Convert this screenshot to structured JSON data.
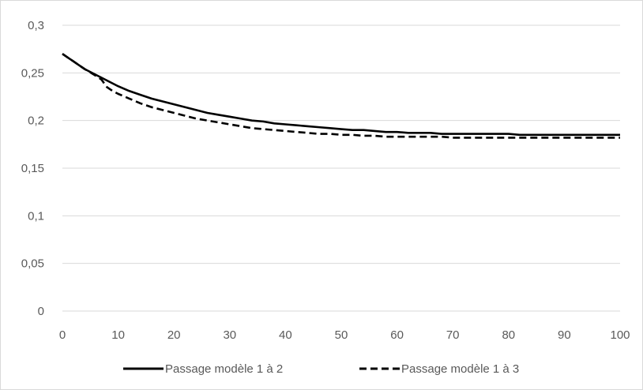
{
  "chart_data": {
    "type": "line",
    "title": "",
    "xlabel": "",
    "ylabel": "",
    "xlim": [
      0,
      100
    ],
    "ylim": [
      0,
      0.3
    ],
    "x_ticks": [
      0,
      10,
      20,
      30,
      40,
      50,
      60,
      70,
      80,
      90,
      100
    ],
    "y_ticks": [
      0,
      0.05,
      0.1,
      0.15,
      0.2,
      0.25,
      0.3
    ],
    "x_tick_labels": [
      "0",
      "10",
      "20",
      "30",
      "40",
      "50",
      "60",
      "70",
      "80",
      "90",
      "100"
    ],
    "y_tick_labels": [
      "0",
      "0,05",
      "0,1",
      "0,15",
      "0,2",
      "0,25",
      "0,3"
    ],
    "grid": "horizontal",
    "legend_position": "bottom",
    "colors": {
      "series": "#000000",
      "grid": "#d9d9d9",
      "tick_text": "#595959",
      "border": "#d9d9d9"
    },
    "series": [
      {
        "name": "Passage modèle 1 à 2",
        "style": "solid",
        "x": [
          0,
          1,
          2,
          3,
          4,
          5,
          6,
          7,
          8,
          9,
          10,
          12,
          14,
          16,
          18,
          20,
          22,
          24,
          26,
          28,
          30,
          32,
          34,
          36,
          38,
          40,
          42,
          44,
          46,
          48,
          50,
          52,
          54,
          56,
          58,
          60,
          62,
          64,
          66,
          68,
          70,
          72,
          74,
          76,
          78,
          80,
          82,
          84,
          86,
          88,
          90,
          92,
          94,
          96,
          98,
          100
        ],
        "y": [
          0.27,
          0.266,
          0.262,
          0.258,
          0.254,
          0.251,
          0.248,
          0.245,
          0.242,
          0.239,
          0.236,
          0.231,
          0.227,
          0.223,
          0.22,
          0.217,
          0.214,
          0.211,
          0.208,
          0.206,
          0.204,
          0.202,
          0.2,
          0.199,
          0.197,
          0.196,
          0.195,
          0.194,
          0.193,
          0.192,
          0.191,
          0.19,
          0.19,
          0.189,
          0.188,
          0.188,
          0.187,
          0.187,
          0.187,
          0.186,
          0.186,
          0.186,
          0.186,
          0.186,
          0.186,
          0.186,
          0.185,
          0.185,
          0.185,
          0.185,
          0.185,
          0.185,
          0.185,
          0.185,
          0.185,
          0.185
        ]
      },
      {
        "name": "Passage modèle 1 à 3",
        "style": "dashed",
        "x": [
          0,
          2,
          4,
          6,
          7,
          8,
          9,
          10,
          12,
          14,
          16,
          18,
          20,
          22,
          24,
          26,
          28,
          30,
          32,
          34,
          36,
          38,
          40,
          42,
          44,
          46,
          48,
          50,
          52,
          54,
          56,
          58,
          60,
          62,
          64,
          66,
          68,
          70,
          72,
          74,
          76,
          78,
          80,
          82,
          84,
          86,
          88,
          90,
          92,
          94,
          96,
          98,
          100
        ],
        "y": [
          0.27,
          0.262,
          0.254,
          0.247,
          0.243,
          0.235,
          0.231,
          0.228,
          0.223,
          0.218,
          0.214,
          0.211,
          0.208,
          0.205,
          0.202,
          0.2,
          0.198,
          0.196,
          0.194,
          0.192,
          0.191,
          0.19,
          0.189,
          0.188,
          0.187,
          0.186,
          0.186,
          0.185,
          0.185,
          0.184,
          0.184,
          0.183,
          0.183,
          0.183,
          0.183,
          0.183,
          0.183,
          0.182,
          0.182,
          0.182,
          0.182,
          0.182,
          0.182,
          0.182,
          0.182,
          0.182,
          0.182,
          0.182,
          0.182,
          0.182,
          0.182,
          0.182,
          0.182
        ]
      }
    ]
  }
}
